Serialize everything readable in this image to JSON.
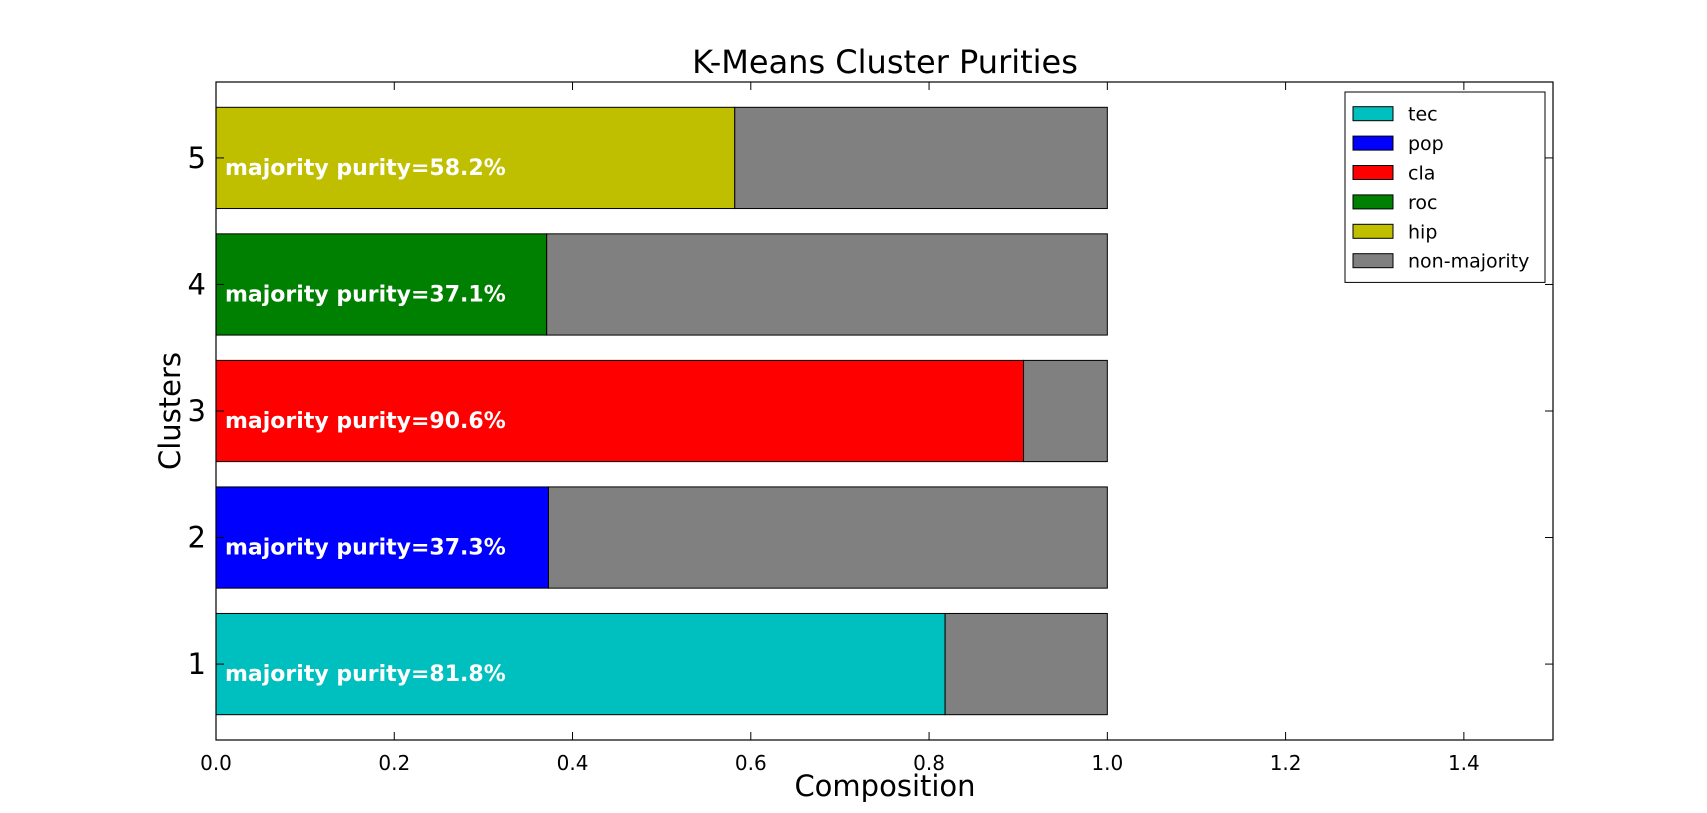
{
  "chart_data": {
    "type": "bar",
    "orientation": "horizontal",
    "stacked": true,
    "title": "K-Means Cluster Purities",
    "xlabel": "Composition",
    "ylabel": "Clusters",
    "xlim": [
      0.0,
      1.5
    ],
    "xticks": [
      0.0,
      0.2,
      0.4,
      0.6,
      0.8,
      1.0,
      1.2,
      1.4
    ],
    "xtick_labels": [
      "0.0",
      "0.2",
      "0.4",
      "0.6",
      "0.8",
      "1.0",
      "1.2",
      "1.4"
    ],
    "categories": [
      "1",
      "2",
      "3",
      "4",
      "5"
    ],
    "clusters": [
      {
        "label": "1",
        "majority_genre": "tec",
        "majority": 0.818,
        "non_majority": 0.182,
        "annotation": "majority purity=81.8%"
      },
      {
        "label": "2",
        "majority_genre": "pop",
        "majority": 0.373,
        "non_majority": 0.627,
        "annotation": "majority purity=37.3%"
      },
      {
        "label": "3",
        "majority_genre": "cla",
        "majority": 0.906,
        "non_majority": 0.094,
        "annotation": "majority purity=90.6%"
      },
      {
        "label": "4",
        "majority_genre": "roc",
        "majority": 0.371,
        "non_majority": 0.629,
        "annotation": "majority purity=37.1%"
      },
      {
        "label": "5",
        "majority_genre": "hip",
        "majority": 0.582,
        "non_majority": 0.418,
        "annotation": "majority purity=58.2%"
      }
    ],
    "legend": {
      "position": "top-right",
      "entries": [
        {
          "name": "tec",
          "color": "#00bfbf"
        },
        {
          "name": "pop",
          "color": "#0000ff"
        },
        {
          "name": "cla",
          "color": "#ff0000"
        },
        {
          "name": "roc",
          "color": "#008000"
        },
        {
          "name": "hip",
          "color": "#bfbf00"
        },
        {
          "name": "non-majority",
          "color": "#808080"
        }
      ]
    },
    "grid": false
  }
}
